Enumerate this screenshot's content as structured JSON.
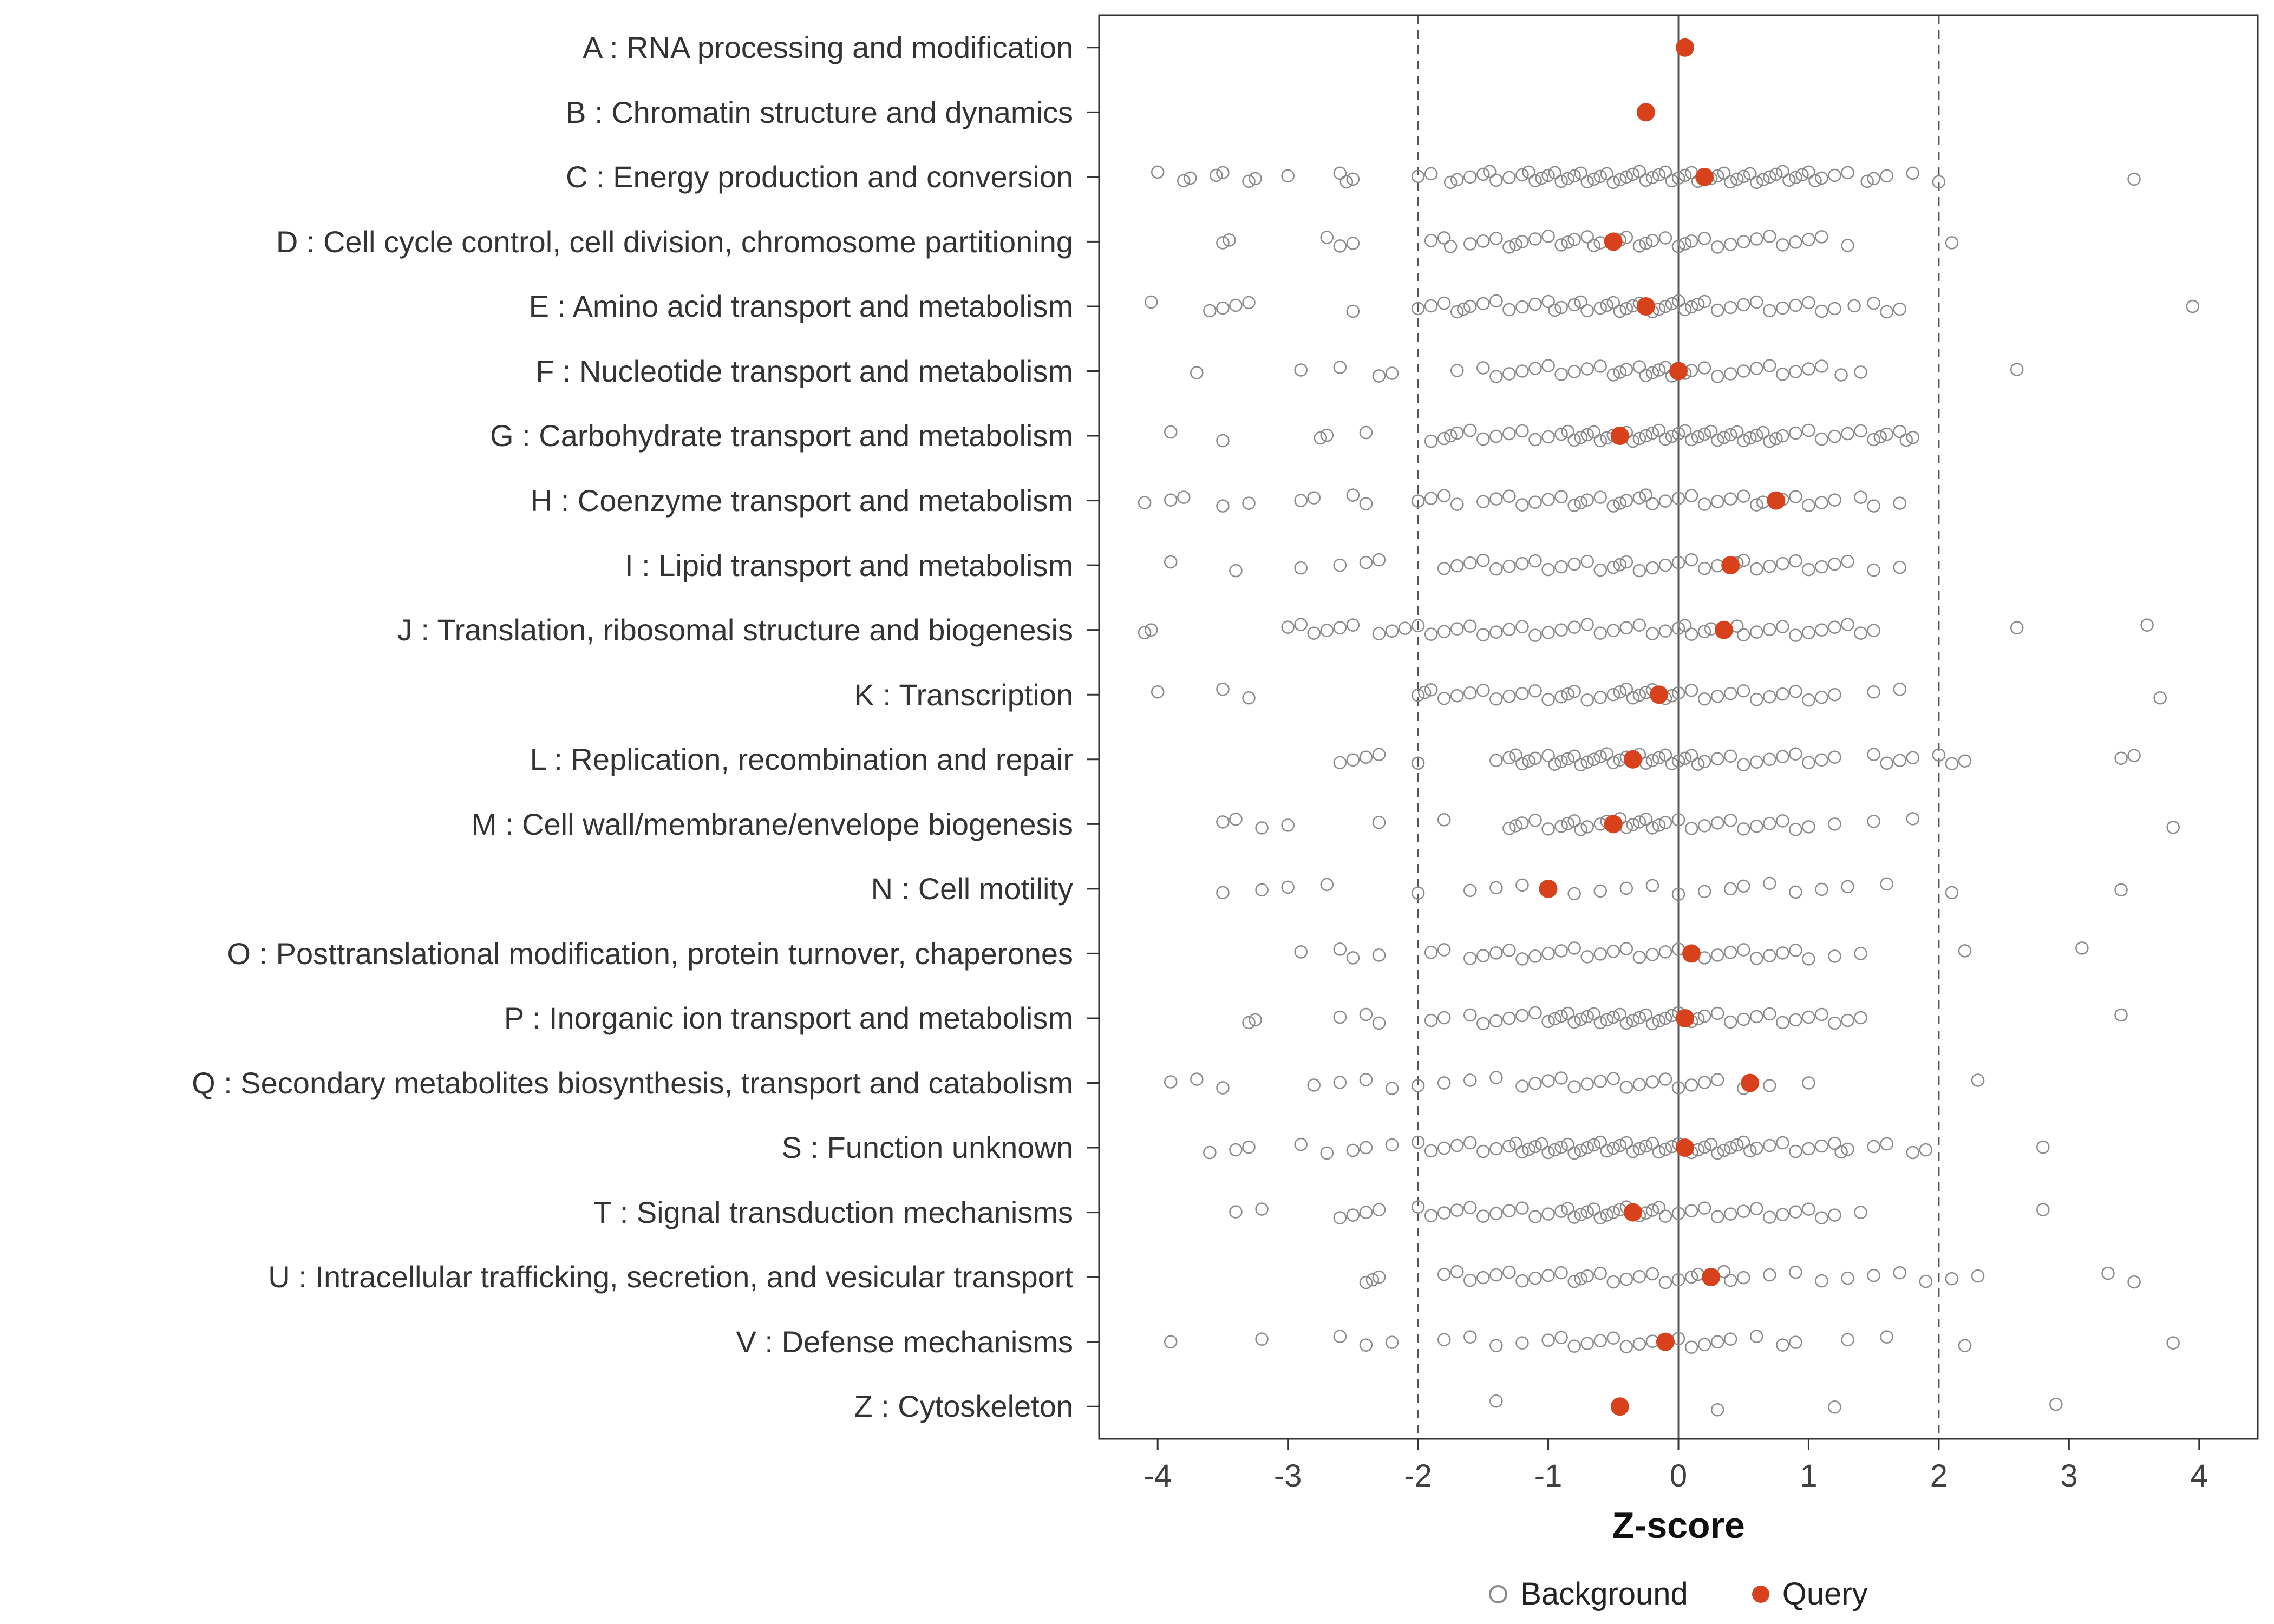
{
  "chart_data": {
    "type": "scatter",
    "title": "",
    "xlabel": "Z-score",
    "xlim": [
      -4.45,
      4.45
    ],
    "xticks": [
      -4,
      -3,
      -2,
      -1,
      0,
      1,
      2,
      3,
      4
    ],
    "grid": false,
    "vlines": [
      {
        "x": -2,
        "style": "dashed"
      },
      {
        "x": 0,
        "style": "solid"
      },
      {
        "x": 2,
        "style": "dashed"
      }
    ],
    "colors": {
      "background": "#8A8A8A",
      "query": "#D7421C",
      "panel_border": "#333333",
      "axis_text": "#404040",
      "ref_line": "#555555"
    },
    "legend": {
      "position": "bottom",
      "background_label": "Background",
      "query_label": "Query"
    },
    "categories": [
      {
        "label": "A : RNA processing and modification",
        "query": 0.05,
        "background": []
      },
      {
        "label": "B : Chromatin structure and dynamics",
        "query": -0.25,
        "background": []
      },
      {
        "label": "C : Energy production and conversion",
        "query": 0.2,
        "background": [
          -4.0,
          -3.8,
          -3.75,
          -3.55,
          -3.5,
          -3.3,
          -3.25,
          -3.0,
          -2.6,
          -2.55,
          -2.5,
          -2.0,
          -1.9,
          -1.75,
          -1.7,
          -1.6,
          -1.5,
          -1.45,
          -1.4,
          -1.3,
          -1.2,
          -1.15,
          -1.1,
          -1.05,
          -1.0,
          -0.95,
          -0.9,
          -0.85,
          -0.8,
          -0.75,
          -0.7,
          -0.65,
          -0.6,
          -0.55,
          -0.5,
          -0.45,
          -0.4,
          -0.35,
          -0.3,
          -0.25,
          -0.2,
          -0.15,
          -0.1,
          -0.05,
          0.0,
          0.05,
          0.1,
          0.15,
          0.25,
          0.3,
          0.35,
          0.4,
          0.45,
          0.5,
          0.55,
          0.6,
          0.65,
          0.7,
          0.75,
          0.8,
          0.85,
          0.9,
          0.95,
          1.0,
          1.05,
          1.1,
          1.2,
          1.3,
          1.45,
          1.5,
          1.6,
          1.8,
          2.0,
          3.5
        ]
      },
      {
        "label": "D : Cell cycle control, cell division, chromosome partitioning",
        "query": -0.5,
        "background": [
          -3.5,
          -3.45,
          -2.7,
          -2.6,
          -2.5,
          -1.9,
          -1.8,
          -1.75,
          -1.6,
          -1.5,
          -1.4,
          -1.3,
          -1.25,
          -1.2,
          -1.1,
          -1.0,
          -0.9,
          -0.85,
          -0.8,
          -0.7,
          -0.65,
          -0.6,
          -0.45,
          -0.4,
          -0.3,
          -0.25,
          -0.2,
          -0.1,
          0.0,
          0.05,
          0.1,
          0.2,
          0.3,
          0.4,
          0.5,
          0.6,
          0.7,
          0.8,
          0.9,
          1.0,
          1.1,
          1.3,
          2.1
        ]
      },
      {
        "label": "E : Amino acid transport and metabolism",
        "query": -0.25,
        "background": [
          -4.05,
          -3.6,
          -3.5,
          -3.4,
          -3.3,
          -2.5,
          -2.0,
          -1.9,
          -1.8,
          -1.7,
          -1.65,
          -1.6,
          -1.5,
          -1.4,
          -1.3,
          -1.2,
          -1.1,
          -1.0,
          -0.95,
          -0.9,
          -0.8,
          -0.75,
          -0.7,
          -0.6,
          -0.55,
          -0.5,
          -0.45,
          -0.4,
          -0.35,
          -0.3,
          -0.2,
          -0.15,
          -0.1,
          -0.05,
          0.0,
          0.05,
          0.1,
          0.15,
          0.2,
          0.3,
          0.4,
          0.5,
          0.6,
          0.7,
          0.8,
          0.9,
          1.0,
          1.1,
          1.2,
          1.35,
          1.5,
          1.6,
          1.7,
          3.95
        ]
      },
      {
        "label": "F : Nucleotide transport and metabolism",
        "query": 0.0,
        "background": [
          -3.7,
          -2.9,
          -2.6,
          -2.3,
          -2.2,
          -1.7,
          -1.5,
          -1.4,
          -1.3,
          -1.2,
          -1.1,
          -1.0,
          -0.9,
          -0.8,
          -0.7,
          -0.6,
          -0.5,
          -0.45,
          -0.4,
          -0.3,
          -0.25,
          -0.2,
          -0.15,
          -0.1,
          -0.05,
          0.05,
          0.1,
          0.2,
          0.3,
          0.4,
          0.5,
          0.6,
          0.7,
          0.8,
          0.9,
          1.0,
          1.1,
          1.25,
          1.4,
          2.6
        ]
      },
      {
        "label": "G : Carbohydrate transport and metabolism",
        "query": -0.45,
        "background": [
          -3.9,
          -3.5,
          -2.75,
          -2.7,
          -2.4,
          -1.9,
          -1.8,
          -1.75,
          -1.7,
          -1.6,
          -1.5,
          -1.4,
          -1.3,
          -1.2,
          -1.1,
          -1.0,
          -0.9,
          -0.85,
          -0.8,
          -0.75,
          -0.7,
          -0.65,
          -0.6,
          -0.55,
          -0.5,
          -0.4,
          -0.35,
          -0.3,
          -0.25,
          -0.2,
          -0.15,
          -0.1,
          -0.05,
          0.0,
          0.05,
          0.1,
          0.15,
          0.2,
          0.25,
          0.3,
          0.35,
          0.4,
          0.45,
          0.5,
          0.55,
          0.6,
          0.65,
          0.7,
          0.75,
          0.8,
          0.9,
          1.0,
          1.1,
          1.2,
          1.3,
          1.4,
          1.5,
          1.55,
          1.6,
          1.7,
          1.75,
          1.8
        ]
      },
      {
        "label": "H : Coenzyme transport and metabolism",
        "query": 0.75,
        "background": [
          -4.1,
          -3.9,
          -3.8,
          -3.5,
          -3.3,
          -2.9,
          -2.8,
          -2.5,
          -2.4,
          -2.0,
          -1.9,
          -1.8,
          -1.7,
          -1.5,
          -1.4,
          -1.3,
          -1.2,
          -1.1,
          -1.0,
          -0.9,
          -0.8,
          -0.75,
          -0.7,
          -0.6,
          -0.5,
          -0.45,
          -0.4,
          -0.3,
          -0.25,
          -0.2,
          -0.1,
          0.0,
          0.1,
          0.2,
          0.3,
          0.4,
          0.5,
          0.6,
          0.65,
          0.8,
          0.9,
          1.0,
          1.1,
          1.2,
          1.4,
          1.5,
          1.7
        ]
      },
      {
        "label": "I : Lipid transport and metabolism",
        "query": 0.4,
        "background": [
          -3.9,
          -3.4,
          -2.9,
          -2.6,
          -2.4,
          -2.3,
          -1.8,
          -1.7,
          -1.6,
          -1.5,
          -1.4,
          -1.3,
          -1.2,
          -1.1,
          -1.0,
          -0.9,
          -0.8,
          -0.7,
          -0.6,
          -0.5,
          -0.45,
          -0.4,
          -0.3,
          -0.2,
          -0.1,
          0.0,
          0.1,
          0.2,
          0.3,
          0.45,
          0.5,
          0.6,
          0.7,
          0.8,
          0.9,
          1.0,
          1.1,
          1.2,
          1.3,
          1.5,
          1.7
        ]
      },
      {
        "label": "J : Translation, ribosomal structure and biogenesis",
        "query": 0.35,
        "background": [
          -4.1,
          -4.05,
          -3.0,
          -2.9,
          -2.8,
          -2.7,
          -2.6,
          -2.5,
          -2.3,
          -2.2,
          -2.1,
          -2.0,
          -1.9,
          -1.8,
          -1.7,
          -1.6,
          -1.5,
          -1.4,
          -1.3,
          -1.2,
          -1.1,
          -1.0,
          -0.9,
          -0.8,
          -0.7,
          -0.6,
          -0.5,
          -0.4,
          -0.3,
          -0.2,
          -0.1,
          0.0,
          0.05,
          0.1,
          0.2,
          0.25,
          0.45,
          0.5,
          0.6,
          0.7,
          0.8,
          0.9,
          1.0,
          1.1,
          1.2,
          1.3,
          1.4,
          1.5,
          2.6,
          3.6
        ]
      },
      {
        "label": "K : Transcription",
        "query": -0.15,
        "background": [
          -4.0,
          -3.5,
          -3.3,
          -2.0,
          -1.95,
          -1.9,
          -1.8,
          -1.7,
          -1.6,
          -1.5,
          -1.4,
          -1.3,
          -1.2,
          -1.1,
          -1.0,
          -0.9,
          -0.85,
          -0.8,
          -0.7,
          -0.6,
          -0.5,
          -0.45,
          -0.4,
          -0.35,
          -0.3,
          -0.25,
          -0.2,
          -0.1,
          -0.05,
          0.0,
          0.1,
          0.2,
          0.3,
          0.4,
          0.5,
          0.6,
          0.7,
          0.8,
          0.9,
          1.0,
          1.1,
          1.2,
          1.5,
          1.7,
          3.7
        ]
      },
      {
        "label": "L : Replication, recombination and repair",
        "query": -0.35,
        "background": [
          -2.6,
          -2.5,
          -2.4,
          -2.3,
          -2.0,
          -1.4,
          -1.3,
          -1.25,
          -1.2,
          -1.15,
          -1.1,
          -1.0,
          -0.95,
          -0.9,
          -0.85,
          -0.8,
          -0.75,
          -0.7,
          -0.65,
          -0.6,
          -0.55,
          -0.5,
          -0.45,
          -0.4,
          -0.3,
          -0.25,
          -0.2,
          -0.15,
          -0.1,
          -0.05,
          0.0,
          0.05,
          0.1,
          0.15,
          0.2,
          0.3,
          0.4,
          0.5,
          0.6,
          0.7,
          0.8,
          0.9,
          1.0,
          1.1,
          1.2,
          1.5,
          1.6,
          1.7,
          1.8,
          2.0,
          2.1,
          2.2,
          3.4,
          3.5
        ]
      },
      {
        "label": "M : Cell wall/membrane/envelope biogenesis",
        "query": -0.5,
        "background": [
          -3.5,
          -3.4,
          -3.2,
          -3.0,
          -2.3,
          -1.8,
          -1.3,
          -1.25,
          -1.2,
          -1.1,
          -1.0,
          -0.9,
          -0.85,
          -0.8,
          -0.75,
          -0.7,
          -0.6,
          -0.55,
          -0.45,
          -0.4,
          -0.35,
          -0.3,
          -0.25,
          -0.2,
          -0.15,
          -0.1,
          0.0,
          0.1,
          0.2,
          0.3,
          0.4,
          0.5,
          0.6,
          0.7,
          0.8,
          0.9,
          1.0,
          1.2,
          1.5,
          1.8,
          3.8
        ]
      },
      {
        "label": "N : Cell motility",
        "query": -1.0,
        "background": [
          -3.5,
          -3.2,
          -3.0,
          -2.7,
          -2.0,
          -1.6,
          -1.4,
          -1.2,
          -0.8,
          -0.6,
          -0.4,
          -0.2,
          0.0,
          0.2,
          0.4,
          0.5,
          0.7,
          0.9,
          1.1,
          1.3,
          1.6,
          2.1,
          3.4
        ]
      },
      {
        "label": "O : Posttranslational modification, protein turnover, chaperones",
        "query": 0.1,
        "background": [
          -2.9,
          -2.6,
          -2.5,
          -2.3,
          -1.9,
          -1.8,
          -1.6,
          -1.5,
          -1.4,
          -1.3,
          -1.2,
          -1.1,
          -1.0,
          -0.9,
          -0.8,
          -0.7,
          -0.6,
          -0.5,
          -0.4,
          -0.3,
          -0.2,
          -0.1,
          0.0,
          0.2,
          0.3,
          0.4,
          0.5,
          0.6,
          0.7,
          0.8,
          0.9,
          1.0,
          1.2,
          1.4,
          2.2,
          3.1
        ]
      },
      {
        "label": "P : Inorganic ion transport and metabolism",
        "query": 0.05,
        "background": [
          -3.3,
          -3.25,
          -2.6,
          -2.4,
          -2.3,
          -1.9,
          -1.8,
          -1.6,
          -1.5,
          -1.4,
          -1.3,
          -1.2,
          -1.1,
          -1.0,
          -0.95,
          -0.9,
          -0.85,
          -0.8,
          -0.75,
          -0.7,
          -0.65,
          -0.6,
          -0.55,
          -0.5,
          -0.45,
          -0.4,
          -0.35,
          -0.3,
          -0.25,
          -0.2,
          -0.15,
          -0.1,
          -0.05,
          0.0,
          0.1,
          0.15,
          0.2,
          0.3,
          0.4,
          0.5,
          0.6,
          0.7,
          0.8,
          0.9,
          1.0,
          1.1,
          1.2,
          1.3,
          1.4,
          3.4
        ]
      },
      {
        "label": "Q : Secondary metabolites biosynthesis, transport and catabolism",
        "query": 0.55,
        "background": [
          -3.9,
          -3.7,
          -3.5,
          -2.8,
          -2.6,
          -2.4,
          -2.2,
          -2.0,
          -1.8,
          -1.6,
          -1.4,
          -1.2,
          -1.1,
          -1.0,
          -0.9,
          -0.8,
          -0.7,
          -0.6,
          -0.5,
          -0.4,
          -0.3,
          -0.2,
          -0.1,
          0.0,
          0.1,
          0.2,
          0.3,
          0.5,
          0.7,
          1.0,
          2.3
        ]
      },
      {
        "label": "S : Function unknown",
        "query": 0.05,
        "background": [
          -3.6,
          -3.4,
          -3.3,
          -2.9,
          -2.7,
          -2.5,
          -2.4,
          -2.2,
          -2.0,
          -1.9,
          -1.8,
          -1.7,
          -1.6,
          -1.5,
          -1.4,
          -1.3,
          -1.25,
          -1.2,
          -1.15,
          -1.1,
          -1.05,
          -1.0,
          -0.95,
          -0.9,
          -0.85,
          -0.8,
          -0.75,
          -0.7,
          -0.65,
          -0.6,
          -0.55,
          -0.5,
          -0.45,
          -0.4,
          -0.35,
          -0.3,
          -0.25,
          -0.2,
          -0.15,
          -0.1,
          -0.05,
          0.0,
          0.1,
          0.15,
          0.2,
          0.25,
          0.3,
          0.35,
          0.4,
          0.45,
          0.5,
          0.55,
          0.6,
          0.7,
          0.8,
          0.9,
          1.0,
          1.1,
          1.2,
          1.25,
          1.3,
          1.5,
          1.6,
          1.8,
          1.9,
          2.8
        ]
      },
      {
        "label": "T : Signal transduction mechanisms",
        "query": -0.35,
        "background": [
          -3.4,
          -3.2,
          -2.6,
          -2.5,
          -2.4,
          -2.3,
          -2.0,
          -1.9,
          -1.8,
          -1.7,
          -1.6,
          -1.5,
          -1.4,
          -1.3,
          -1.2,
          -1.1,
          -1.0,
          -0.9,
          -0.85,
          -0.8,
          -0.75,
          -0.7,
          -0.65,
          -0.6,
          -0.55,
          -0.5,
          -0.45,
          -0.4,
          -0.3,
          -0.25,
          -0.2,
          -0.15,
          -0.1,
          0.0,
          0.1,
          0.2,
          0.3,
          0.4,
          0.5,
          0.6,
          0.7,
          0.8,
          0.9,
          1.0,
          1.1,
          1.2,
          1.4,
          2.8
        ]
      },
      {
        "label": "U : Intracellular trafficking, secretion, and vesicular transport",
        "query": 0.25,
        "background": [
          -2.4,
          -2.35,
          -2.3,
          -1.8,
          -1.7,
          -1.6,
          -1.5,
          -1.4,
          -1.3,
          -1.2,
          -1.1,
          -1.0,
          -0.9,
          -0.8,
          -0.75,
          -0.7,
          -0.6,
          -0.5,
          -0.4,
          -0.3,
          -0.2,
          -0.1,
          0.0,
          0.1,
          0.15,
          0.35,
          0.4,
          0.5,
          0.7,
          0.9,
          1.1,
          1.3,
          1.5,
          1.7,
          1.9,
          2.1,
          2.3,
          3.3,
          3.5
        ]
      },
      {
        "label": "V : Defense mechanisms",
        "query": -0.1,
        "background": [
          -3.9,
          -3.2,
          -2.6,
          -2.4,
          -2.2,
          -1.8,
          -1.6,
          -1.4,
          -1.2,
          -1.0,
          -0.9,
          -0.8,
          -0.7,
          -0.6,
          -0.5,
          -0.4,
          -0.3,
          -0.2,
          0.0,
          0.1,
          0.2,
          0.3,
          0.4,
          0.6,
          0.8,
          0.9,
          1.3,
          1.6,
          2.2,
          3.8
        ]
      },
      {
        "label": "Z : Cytoskeleton",
        "query": -0.45,
        "background": [
          -1.4,
          0.3,
          1.2,
          2.9
        ]
      }
    ]
  }
}
